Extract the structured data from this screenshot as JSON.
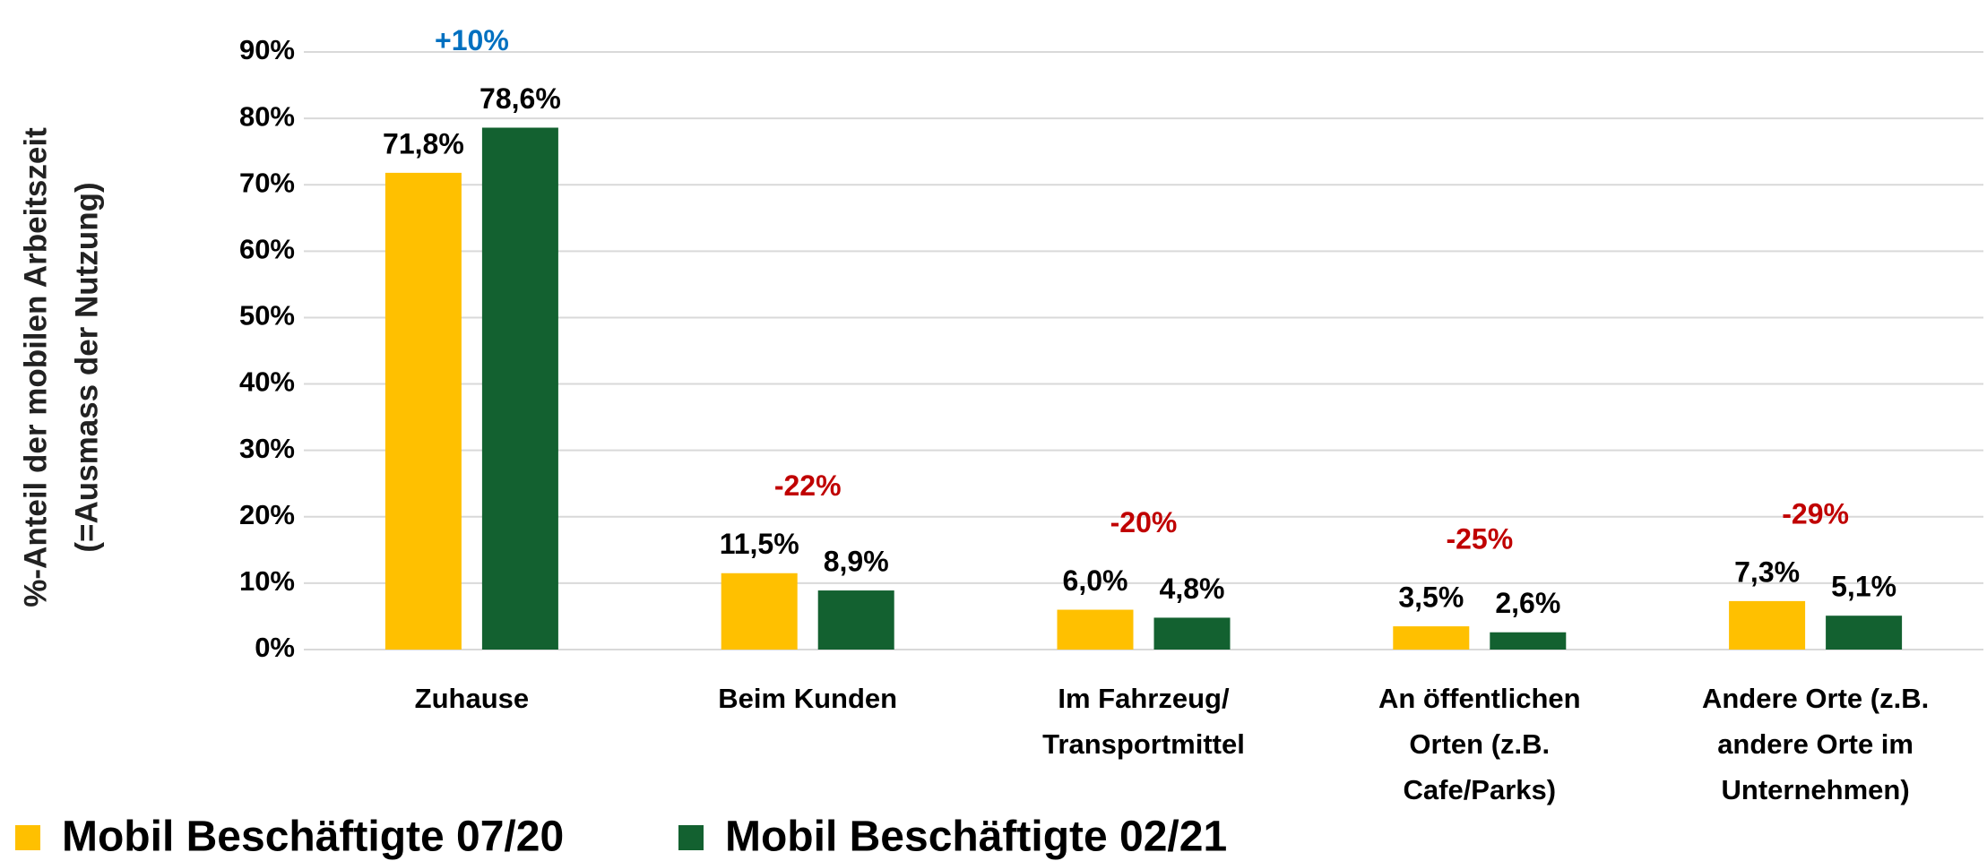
{
  "chart_data": {
    "type": "bar",
    "y_axis_label": [
      "%-Anteil der mobilen Arbeitszeit",
      "(=Ausmass der Nutzung)"
    ],
    "categories": [
      [
        "Zuhause"
      ],
      [
        "Beim Kunden"
      ],
      [
        "Im Fahrzeug/",
        "Transportmittel"
      ],
      [
        "An öffentlichen",
        "Orten (z.B.",
        "Cafe/Parks)"
      ],
      [
        "Andere Orte (z.B.",
        "andere Orte im",
        "Unternehmen)"
      ]
    ],
    "series": [
      {
        "name": "Mobil Beschäftigte 07/20",
        "color": "#ffc000",
        "values": [
          71.8,
          11.5,
          6.0,
          3.5,
          7.3
        ],
        "value_labels": [
          "71,8%",
          "11,5%",
          "6,0%",
          "3,5%",
          "7,3%"
        ]
      },
      {
        "name": "Mobil Beschäftigte 02/21",
        "color": "#136130",
        "values": [
          78.6,
          8.9,
          4.8,
          2.6,
          5.1
        ],
        "value_labels": [
          "78,6%",
          "8,9%",
          "4,8%",
          "2,6%",
          "5,1%"
        ]
      }
    ],
    "annotations": [
      {
        "text": "+10%",
        "color": "#0070c0"
      },
      {
        "text": "-22%",
        "color": "#c00000"
      },
      {
        "text": "-20%",
        "color": "#c00000"
      },
      {
        "text": "-25%",
        "color": "#c00000"
      },
      {
        "text": "-29%",
        "color": "#c00000"
      }
    ],
    "ylim": [
      0,
      90
    ],
    "yticks": [
      {
        "value": 0,
        "label": "0%"
      },
      {
        "value": 10,
        "label": "10%"
      },
      {
        "value": 20,
        "label": "20%"
      },
      {
        "value": 30,
        "label": "30%"
      },
      {
        "value": 40,
        "label": "40%"
      },
      {
        "value": 50,
        "label": "50%"
      },
      {
        "value": 60,
        "label": "60%"
      },
      {
        "value": 70,
        "label": "70%"
      },
      {
        "value": 80,
        "label": "80%"
      },
      {
        "value": 90,
        "label": "90%"
      }
    ],
    "grid": true,
    "legend": "bottom-left"
  }
}
